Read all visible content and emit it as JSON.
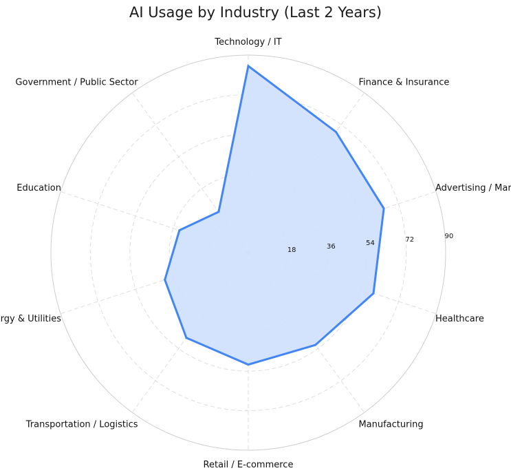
{
  "chart_data": {
    "type": "radar",
    "title": "AI Usage by Industry (Last 2 Years)",
    "categories": [
      "Technology / IT",
      "Finance & Insurance",
      "Advertising / Marketing",
      "Healthcare",
      "Manufacturing",
      "Retail / E-commerce",
      "Transportation / Logistics",
      "Energy & Utilities",
      "Education",
      "Government / Public Sector"
    ],
    "values": [
      85,
      68,
      65,
      60,
      52,
      51,
      48,
      40,
      33,
      23
    ],
    "rlim": [
      0,
      90
    ],
    "rticks": [
      18,
      36,
      54,
      72,
      90
    ],
    "grid": true,
    "colors": {
      "line": "#4285f4",
      "fill": "#cfe0fd",
      "grid": "#dddddd",
      "outer": "#cccccc"
    }
  }
}
